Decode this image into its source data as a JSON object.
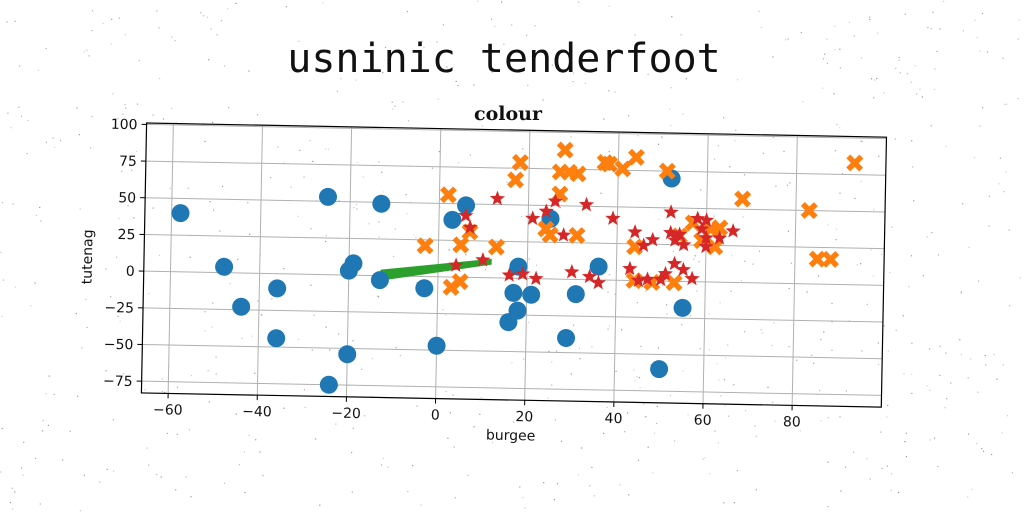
{
  "page_title": "usninic tenderfoot",
  "colors": {
    "circles": "#1f77b4",
    "crosses": "#ff7f0e",
    "band": "#2ca02c",
    "stars": "#d62728",
    "grid": "#b0b0b0"
  },
  "chart_data": {
    "type": "scatter",
    "title": "colour",
    "xlabel": "burgee",
    "ylabel": "tutenag",
    "xlim": [
      -66,
      100
    ],
    "ylim": [
      -83,
      101
    ],
    "xticks": [
      -60,
      -40,
      -20,
      0,
      20,
      40,
      60,
      80
    ],
    "yticks": [
      100,
      75,
      50,
      25,
      0,
      -25,
      -50,
      -75
    ],
    "grid": true,
    "series": [
      {
        "marker": "circle",
        "points": [
          [
            -58,
            40
          ],
          [
            -48,
            4
          ],
          [
            -44,
            -23
          ],
          [
            -36,
            -10
          ],
          [
            -36,
            -44
          ],
          [
            -25,
            53
          ],
          [
            -24,
            -75
          ],
          [
            -20,
            3
          ],
          [
            -20,
            -54
          ],
          [
            -19,
            8
          ],
          [
            -13,
            -3
          ],
          [
            -13,
            49
          ],
          [
            -3,
            -8
          ],
          [
            0,
            -47
          ],
          [
            3,
            39
          ],
          [
            6,
            49
          ],
          [
            16,
            -30
          ],
          [
            17,
            -10
          ],
          [
            18,
            8
          ],
          [
            18,
            -22
          ],
          [
            21,
            -11
          ],
          [
            25,
            41
          ],
          [
            29,
            -40
          ],
          [
            31,
            -10
          ],
          [
            36,
            9
          ],
          [
            50,
            -60
          ],
          [
            52,
            70
          ],
          [
            55,
            -18
          ]
        ]
      },
      {
        "marker": "x",
        "points": [
          [
            -3,
            21
          ],
          [
            2,
            56
          ],
          [
            3,
            -7
          ],
          [
            5,
            -3
          ],
          [
            5,
            22
          ],
          [
            7,
            31
          ],
          [
            13,
            21
          ],
          [
            17,
            67
          ],
          [
            18,
            79
          ],
          [
            24,
            34
          ],
          [
            25,
            30
          ],
          [
            27,
            58
          ],
          [
            27,
            73
          ],
          [
            28,
            88
          ],
          [
            29,
            73
          ],
          [
            31,
            30
          ],
          [
            31,
            72
          ],
          [
            37,
            80
          ],
          [
            38,
            79
          ],
          [
            41,
            76
          ],
          [
            44,
            0
          ],
          [
            44,
            84
          ],
          [
            44,
            23
          ],
          [
            48,
            -1
          ],
          [
            51,
            75
          ],
          [
            53,
            -1
          ],
          [
            54,
            31
          ],
          [
            57,
            40
          ],
          [
            59,
            28
          ],
          [
            61,
            36
          ],
          [
            62,
            24
          ],
          [
            63,
            37
          ],
          [
            68,
            57
          ],
          [
            83,
            50
          ],
          [
            85,
            17
          ],
          [
            88,
            17
          ],
          [
            93,
            83
          ]
        ]
      },
      {
        "marker": "star",
        "points": [
          [
            4,
            8
          ],
          [
            6,
            42
          ],
          [
            7,
            34
          ],
          [
            13,
            54
          ],
          [
            16,
            2
          ],
          [
            19,
            3
          ],
          [
            21,
            41
          ],
          [
            22,
            0
          ],
          [
            24,
            46
          ],
          [
            26,
            53
          ],
          [
            30,
            5
          ],
          [
            33,
            51
          ],
          [
            34,
            2
          ],
          [
            36,
            -2
          ],
          [
            39,
            42
          ],
          [
            43,
            8
          ],
          [
            44,
            33
          ],
          [
            45,
            0
          ],
          [
            46,
            24
          ],
          [
            47,
            1
          ],
          [
            50,
            1
          ],
          [
            51,
            5
          ],
          [
            52,
            47
          ],
          [
            52,
            33
          ],
          [
            53,
            12
          ],
          [
            53,
            28
          ],
          [
            54,
            32
          ],
          [
            55,
            8
          ],
          [
            55,
            25
          ],
          [
            57,
            2
          ],
          [
            58,
            43
          ],
          [
            59,
            36
          ],
          [
            60,
            30
          ],
          [
            60,
            42
          ],
          [
            63,
            30
          ],
          [
            66,
            35
          ],
          [
            60,
            24
          ],
          [
            48,
            28
          ],
          [
            28,
            30
          ],
          [
            10,
            12
          ]
        ]
      },
      {
        "marker": "band",
        "polygon": [
          [
            -13,
            4
          ],
          [
            12,
            13
          ],
          [
            12,
            9
          ],
          [
            -12,
            -3
          ]
        ]
      }
    ]
  }
}
